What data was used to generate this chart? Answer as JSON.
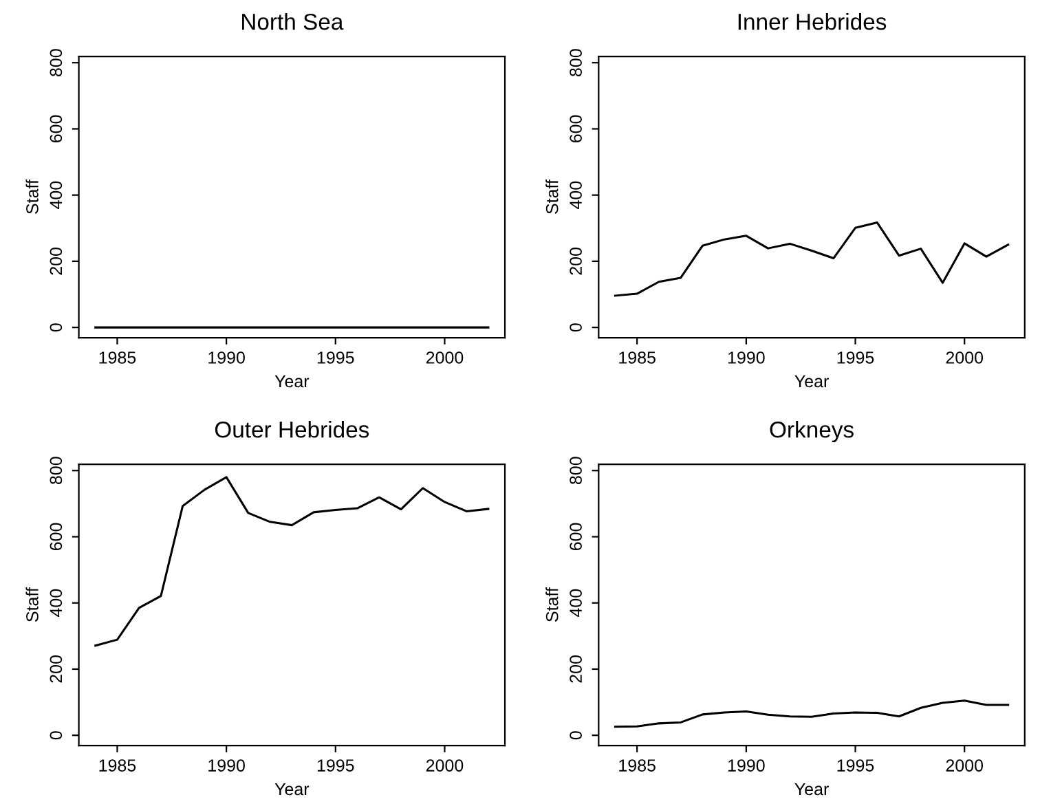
{
  "chart_data": [
    {
      "type": "line",
      "title": "North Sea",
      "xlabel": "Year",
      "ylabel": "Staff",
      "x": [
        1984,
        1985,
        1986,
        1987,
        1988,
        1989,
        1990,
        1991,
        1992,
        1993,
        1994,
        1995,
        1996,
        1997,
        1998,
        1999,
        2000,
        2001,
        2002
      ],
      "series": [
        {
          "color": "#000000",
          "values": [
            0,
            0,
            0,
            0,
            0,
            0,
            0,
            0,
            0,
            0,
            0,
            0,
            0,
            0,
            0,
            0,
            0,
            0,
            0
          ]
        }
      ],
      "xlim": [
        1983.24,
        2002.76
      ],
      "xticks": [
        1985,
        1990,
        1995,
        2000
      ],
      "ylim": [
        -31,
        819
      ],
      "yticks": [
        0,
        200,
        400,
        600,
        800
      ],
      "grid": false,
      "legend": false
    },
    {
      "type": "line",
      "title": "Inner Hebrides",
      "xlabel": "Year",
      "ylabel": "Staff",
      "x": [
        1984,
        1985,
        1986,
        1987,
        1988,
        1989,
        1990,
        1991,
        1992,
        1993,
        1994,
        1995,
        1996,
        1997,
        1998,
        1999,
        2000,
        2001,
        2002
      ],
      "series": [
        {
          "color": "#000000",
          "values": [
            96,
            102,
            138,
            150,
            247,
            266,
            277,
            239,
            253,
            232,
            209,
            301,
            317,
            217,
            238,
            135,
            254,
            214,
            250
          ]
        }
      ],
      "xlim": [
        1983.24,
        2002.76
      ],
      "xticks": [
        1985,
        1990,
        1995,
        2000
      ],
      "ylim": [
        -31,
        819
      ],
      "yticks": [
        0,
        200,
        400,
        600,
        800
      ],
      "grid": false,
      "legend": false
    },
    {
      "type": "line",
      "title": "Outer Hebrides",
      "xlabel": "Year",
      "ylabel": "Staff",
      "x": [
        1984,
        1985,
        1986,
        1987,
        1988,
        1989,
        1990,
        1991,
        1992,
        1993,
        1994,
        1995,
        1996,
        1997,
        1998,
        1999,
        2000,
        2001,
        2002
      ],
      "series": [
        {
          "color": "#000000",
          "values": [
            271,
            289,
            385,
            421,
            693,
            742,
            780,
            672,
            645,
            635,
            674,
            681,
            686,
            719,
            683,
            747,
            705,
            677,
            684
          ]
        }
      ],
      "xlim": [
        1983.24,
        2002.76
      ],
      "xticks": [
        1985,
        1990,
        1995,
        2000
      ],
      "ylim": [
        -31,
        819
      ],
      "yticks": [
        0,
        200,
        400,
        600,
        800
      ],
      "grid": false,
      "legend": false
    },
    {
      "type": "line",
      "title": "Orkneys",
      "xlabel": "Year",
      "ylabel": "Staff",
      "x": [
        1984,
        1985,
        1986,
        1987,
        1988,
        1989,
        1990,
        1991,
        1992,
        1993,
        1994,
        1995,
        1996,
        1997,
        1998,
        1999,
        2000,
        2001,
        2002
      ],
      "series": [
        {
          "color": "#000000",
          "values": [
            26,
            27,
            36,
            39,
            63,
            69,
            72,
            62,
            57,
            56,
            66,
            69,
            68,
            57,
            83,
            98,
            105,
            92,
            92
          ]
        }
      ],
      "xlim": [
        1983.24,
        2002.76
      ],
      "xticks": [
        1985,
        1990,
        1995,
        2000
      ],
      "ylim": [
        -31,
        819
      ],
      "yticks": [
        0,
        200,
        400,
        600,
        800
      ],
      "grid": false,
      "legend": false
    }
  ]
}
